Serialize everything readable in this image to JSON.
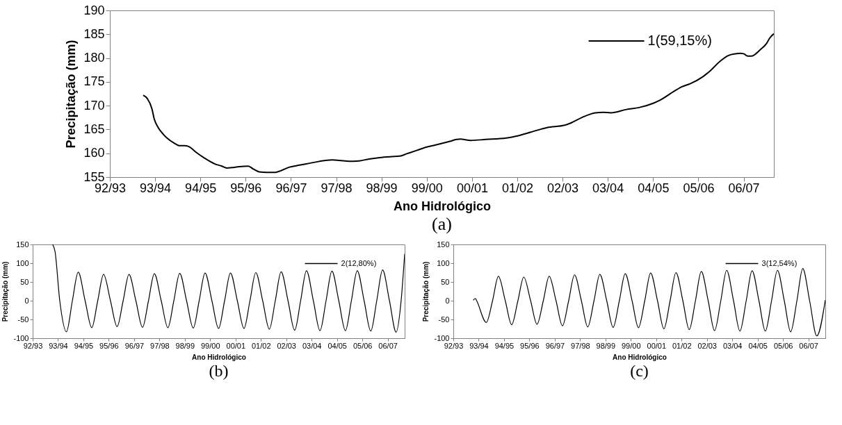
{
  "chart_data": [
    {
      "type": "line",
      "xlabel": "Ano Hidrológico",
      "ylabel": "Precipitação (mm)",
      "annotations": [
        "(a)"
      ],
      "legend": "top right",
      "xlim": [
        "1992-10-01",
        "2007-06-02"
      ],
      "ylim": [
        155,
        190
      ],
      "xticks": [
        {
          "value": "1992-10-01",
          "label": "92/93"
        },
        {
          "value": "1993-10-01",
          "label": "93/94"
        },
        {
          "value": "1994-10-01",
          "label": "94/95"
        },
        {
          "value": "1995-10-01",
          "label": "95/96"
        },
        {
          "value": "1996-10-01",
          "label": "96/97"
        },
        {
          "value": "1997-10-01",
          "label": "97/98"
        },
        {
          "value": "1998-10-01",
          "label": "98/99"
        },
        {
          "value": "1999-10-01",
          "label": "99/00"
        },
        {
          "value": "2000-10-01",
          "label": "00/01"
        },
        {
          "value": "2001-10-01",
          "label": "01/02"
        },
        {
          "value": "2002-10-01",
          "label": "02/03"
        },
        {
          "value": "2003-10-01",
          "label": "03/04"
        },
        {
          "value": "2004-10-01",
          "label": "04/05"
        },
        {
          "value": "2005-10-01",
          "label": "05/06"
        },
        {
          "value": "2006-10-01",
          "label": "06/07"
        }
      ],
      "yticks": [
        155,
        160,
        165,
        170,
        175,
        180,
        185,
        190
      ],
      "series": [
        {
          "name": "1(59,15%)",
          "color": "#000000",
          "x": [
            "1993-06-27",
            "1993-07-30",
            "1993-09-06",
            "1993-09-24",
            "1993-10-26",
            "1993-12-06",
            "1994-01-05",
            "1994-03-06",
            "1994-04-15",
            "1994-05-25",
            "1994-07-01",
            "1994-09-02",
            "1994-11-03",
            "1995-01-23",
            "1995-03-24",
            "1995-05-03",
            "1995-06-13",
            "1995-08-11",
            "1995-10-23",
            "1995-12-02",
            "1996-01-19",
            "1996-03-20",
            "1996-05-29",
            "1996-07-08",
            "1996-09-20",
            "1996-12-09",
            "1997-02-28",
            "1997-05-18",
            "1997-08-29",
            "1997-10-26",
            "1998-01-15",
            "1998-04-05",
            "1998-06-24",
            "1998-09-17",
            "1998-12-24",
            "1999-02-25",
            "1999-04-23",
            "1999-07-12",
            "1999-10-01",
            "1999-12-06",
            "2000-04-05",
            "2000-05-29",
            "2000-06-27",
            "2000-09-20",
            "2001-01-19",
            "2001-07-05",
            "2001-09-24",
            "2002-01-26",
            "2002-05-29",
            "2002-10-19",
            "2002-12-02",
            "2003-03-13",
            "2003-06-24",
            "2003-08-25",
            "2003-10-26",
            "2004-02-29",
            "2004-06-09",
            "2004-10-01",
            "2004-11-21",
            "2005-03-24",
            "2005-05-25",
            "2005-07-26",
            "2005-11-07",
            "2006-01-08",
            "2006-03-20",
            "2006-05-29",
            "2006-07-30",
            "2006-09-02",
            "2006-10-01",
            "2006-11-03",
            "2006-12-02",
            "2007-02-14",
            "2007-04-05",
            "2007-04-30",
            "2007-06-02"
          ],
          "values": [
            172.2,
            171.5,
            169.3,
            167.2,
            165.4,
            164.0,
            163.2,
            162.1,
            161.6,
            161.6,
            161.4,
            160.1,
            159.0,
            157.8,
            157.3,
            156.9,
            157.0,
            157.2,
            157.3,
            156.7,
            156.1,
            156.0,
            156.0,
            156.3,
            157.1,
            157.5,
            157.9,
            158.3,
            158.6,
            158.5,
            158.3,
            158.4,
            158.8,
            159.1,
            159.3,
            159.4,
            159.9,
            160.6,
            161.3,
            161.7,
            162.5,
            162.9,
            163.0,
            162.7,
            162.9,
            163.2,
            163.6,
            164.5,
            165.4,
            165.9,
            166.3,
            167.6,
            168.5,
            168.6,
            168.5,
            169.2,
            169.6,
            170.5,
            171.1,
            173.1,
            174.0,
            174.6,
            176.1,
            177.4,
            179.2,
            180.5,
            180.9,
            181.0,
            180.9,
            180.4,
            180.4,
            181.8,
            183.1,
            184.2,
            185.1
          ]
        }
      ]
    },
    {
      "type": "line",
      "xlabel": "Ano Hidrológico",
      "ylabel": "Precipitação (mm)",
      "annotations": [
        "(b)"
      ],
      "legend": "top right",
      "xlim": [
        "1992-10-01",
        "2007-06-02"
      ],
      "ylim": [
        -100,
        150
      ],
      "xticks": [
        {
          "value": "1992-10-01",
          "label": "92/93"
        },
        {
          "value": "1993-10-01",
          "label": "93/94"
        },
        {
          "value": "1994-10-01",
          "label": "94/95"
        },
        {
          "value": "1995-10-01",
          "label": "95/96"
        },
        {
          "value": "1996-10-01",
          "label": "96/97"
        },
        {
          "value": "1997-10-01",
          "label": "97/98"
        },
        {
          "value": "1998-10-01",
          "label": "98/99"
        },
        {
          "value": "1999-10-01",
          "label": "99/00"
        },
        {
          "value": "2000-10-01",
          "label": "00/01"
        },
        {
          "value": "2001-10-01",
          "label": "01/02"
        },
        {
          "value": "2002-10-01",
          "label": "02/03"
        },
        {
          "value": "2003-10-01",
          "label": "03/04"
        },
        {
          "value": "2004-10-01",
          "label": "04/05"
        },
        {
          "value": "2005-10-01",
          "label": "05/06"
        },
        {
          "value": "2006-10-01",
          "label": "06/07"
        }
      ],
      "yticks": [
        -100,
        -50,
        0,
        50,
        100,
        150
      ],
      "series": [
        {
          "name": "2(12,80%)",
          "color": "#000000",
          "x": [
            "1993-07-15",
            "1993-08-18",
            "1993-10-26",
            "1994-01-30",
            "1994-04-26",
            "1994-07-19",
            "1994-10-26",
            "1995-01-30",
            "1995-04-26",
            "1995-07-19",
            "1995-10-26",
            "1996-01-30",
            "1996-04-26",
            "1996-07-19",
            "1996-10-26",
            "1997-01-30",
            "1997-04-26",
            "1997-07-19",
            "1997-10-26",
            "1998-01-30",
            "1998-04-26",
            "1998-07-19",
            "1998-10-26",
            "1999-01-30",
            "1999-04-26",
            "1999-07-19",
            "1999-10-26",
            "2000-01-30",
            "2000-04-26",
            "2000-07-19",
            "2000-10-26",
            "2001-01-30",
            "2001-04-26",
            "2001-07-19",
            "2001-10-26",
            "2002-01-30",
            "2002-04-26",
            "2002-07-19",
            "2002-10-26",
            "2003-01-30",
            "2003-04-26",
            "2003-07-19",
            "2003-10-26",
            "2004-01-30",
            "2004-04-26",
            "2004-07-19",
            "2004-10-26",
            "2005-01-30",
            "2005-04-26",
            "2005-07-19",
            "2005-10-26",
            "2006-01-30",
            "2006-04-26",
            "2006-07-19",
            "2006-10-26",
            "2007-01-30",
            "2007-04-12",
            "2007-06-02"
          ],
          "values": [
            150,
            132,
            0,
            -83,
            0,
            76,
            0,
            -72,
            0,
            70,
            0,
            -69,
            0,
            70,
            0,
            -71,
            0,
            72,
            0,
            -72,
            0,
            73,
            0,
            -73,
            0,
            74,
            0,
            -74,
            0,
            74,
            0,
            -74,
            0,
            75,
            0,
            -76,
            0,
            77,
            0,
            -79,
            0,
            80,
            0,
            -80,
            0,
            79,
            0,
            -80,
            0,
            80,
            0,
            -81,
            0,
            82,
            0,
            -84,
            0,
            125
          ]
        }
      ]
    },
    {
      "type": "line",
      "xlabel": "Ano Hidrológico",
      "ylabel": "Precipitação (mm)",
      "annotations": [
        "(c)"
      ],
      "legend": "top right",
      "xlim": [
        "1992-10-01",
        "2007-06-02"
      ],
      "ylim": [
        -100,
        150
      ],
      "xticks": [
        {
          "value": "1992-10-01",
          "label": "92/93"
        },
        {
          "value": "1993-10-01",
          "label": "93/94"
        },
        {
          "value": "1994-10-01",
          "label": "94/95"
        },
        {
          "value": "1995-10-01",
          "label": "95/96"
        },
        {
          "value": "1996-10-01",
          "label": "96/97"
        },
        {
          "value": "1997-10-01",
          "label": "97/98"
        },
        {
          "value": "1998-10-01",
          "label": "98/99"
        },
        {
          "value": "1999-10-01",
          "label": "99/00"
        },
        {
          "value": "2000-10-01",
          "label": "00/01"
        },
        {
          "value": "2001-10-01",
          "label": "01/02"
        },
        {
          "value": "2002-10-01",
          "label": "02/03"
        },
        {
          "value": "2003-10-01",
          "label": "03/04"
        },
        {
          "value": "2004-10-01",
          "label": "04/05"
        },
        {
          "value": "2005-10-01",
          "label": "05/06"
        },
        {
          "value": "2006-10-01",
          "label": "06/07"
        }
      ],
      "yticks": [
        -100,
        -50,
        0,
        50,
        100,
        150
      ],
      "series": [
        {
          "name": "3(12,54%)",
          "color": "#000000",
          "x": [
            "1993-07-15",
            "1993-08-14",
            "1993-09-02",
            "1994-01-19",
            "1994-04-19",
            "1994-07-12",
            "1994-10-19",
            "1995-01-19",
            "1995-04-19",
            "1995-07-12",
            "1995-10-19",
            "1996-01-19",
            "1996-04-19",
            "1996-07-12",
            "1996-10-19",
            "1997-01-19",
            "1997-04-19",
            "1997-07-12",
            "1997-10-19",
            "1998-01-19",
            "1998-04-19",
            "1998-07-12",
            "1998-10-19",
            "1999-01-19",
            "1999-04-19",
            "1999-07-12",
            "1999-10-19",
            "2000-01-19",
            "2000-04-19",
            "2000-07-12",
            "2000-10-19",
            "2001-01-19",
            "2001-04-19",
            "2001-07-12",
            "2001-10-19",
            "2002-01-19",
            "2002-04-19",
            "2002-07-12",
            "2002-10-19",
            "2003-01-19",
            "2003-04-19",
            "2003-07-12",
            "2003-10-19",
            "2004-01-19",
            "2004-04-19",
            "2004-07-12",
            "2004-10-19",
            "2005-01-19",
            "2005-04-19",
            "2005-07-12",
            "2005-10-19",
            "2006-01-19",
            "2006-04-19",
            "2006-07-12",
            "2006-10-19",
            "2007-01-30",
            "2007-06-02"
          ],
          "values": [
            1,
            6,
            0,
            -58,
            0,
            65,
            0,
            -64,
            0,
            63,
            0,
            -63,
            0,
            65,
            0,
            -67,
            0,
            69,
            0,
            -70,
            0,
            70,
            0,
            -71,
            0,
            72,
            0,
            -72,
            0,
            74,
            0,
            -75,
            0,
            75,
            0,
            -77,
            0,
            78,
            0,
            -80,
            0,
            81,
            0,
            -81,
            0,
            80,
            0,
            -81,
            0,
            81,
            0,
            -83,
            0,
            86,
            0,
            -94,
            2
          ]
        }
      ]
    }
  ]
}
